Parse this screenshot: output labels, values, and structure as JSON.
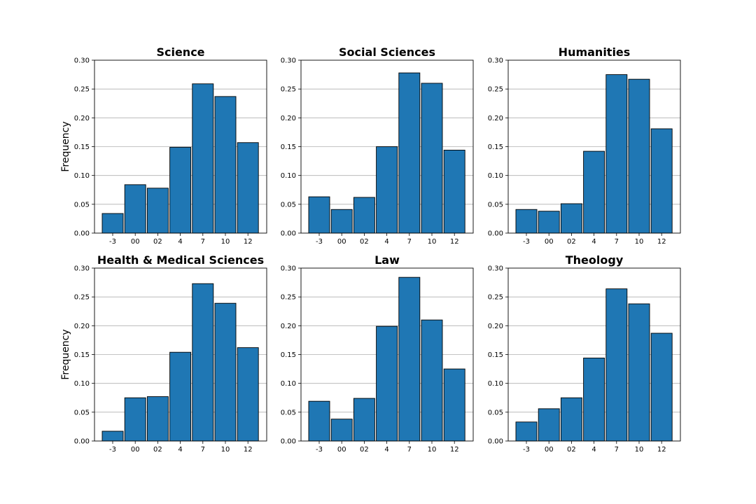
{
  "chart_data": [
    {
      "type": "bar",
      "title": "Science",
      "ylabel": "Frequency",
      "categories": [
        "-3",
        "00",
        "02",
        "4",
        "7",
        "10",
        "12"
      ],
      "values": [
        0.034,
        0.084,
        0.078,
        0.149,
        0.259,
        0.237,
        0.157
      ],
      "ylim": [
        0,
        0.3
      ],
      "yticks": [
        "0.00",
        "0.05",
        "0.10",
        "0.15",
        "0.20",
        "0.25",
        "0.30"
      ],
      "grid": "horizontal",
      "color": "#1f77b4"
    },
    {
      "type": "bar",
      "title": "Social Sciences",
      "ylabel": "",
      "categories": [
        "-3",
        "00",
        "02",
        "4",
        "7",
        "10",
        "12"
      ],
      "values": [
        0.063,
        0.041,
        0.062,
        0.15,
        0.278,
        0.26,
        0.144
      ],
      "ylim": [
        0,
        0.3
      ],
      "yticks": [
        "0.00",
        "0.05",
        "0.10",
        "0.15",
        "0.20",
        "0.25",
        "0.30"
      ],
      "grid": "horizontal",
      "color": "#1f77b4"
    },
    {
      "type": "bar",
      "title": "Humanities",
      "ylabel": "",
      "categories": [
        "-3",
        "00",
        "02",
        "4",
        "7",
        "10",
        "12"
      ],
      "values": [
        0.041,
        0.038,
        0.051,
        0.142,
        0.275,
        0.267,
        0.181
      ],
      "ylim": [
        0,
        0.3
      ],
      "yticks": [
        "0.00",
        "0.05",
        "0.10",
        "0.15",
        "0.20",
        "0.25",
        "0.30"
      ],
      "grid": "horizontal",
      "color": "#1f77b4"
    },
    {
      "type": "bar",
      "title": "Health & Medical Sciences",
      "ylabel": "Frequency",
      "categories": [
        "-3",
        "00",
        "02",
        "4",
        "7",
        "10",
        "12"
      ],
      "values": [
        0.017,
        0.075,
        0.077,
        0.154,
        0.273,
        0.239,
        0.162
      ],
      "ylim": [
        0,
        0.3
      ],
      "yticks": [
        "0.00",
        "0.05",
        "0.10",
        "0.15",
        "0.20",
        "0.25",
        "0.30"
      ],
      "grid": "horizontal",
      "color": "#1f77b4"
    },
    {
      "type": "bar",
      "title": "Law",
      "ylabel": "",
      "categories": [
        "-3",
        "00",
        "02",
        "4",
        "7",
        "10",
        "12"
      ],
      "values": [
        0.069,
        0.038,
        0.074,
        0.199,
        0.284,
        0.21,
        0.125
      ],
      "ylim": [
        0,
        0.3
      ],
      "yticks": [
        "0.00",
        "0.05",
        "0.10",
        "0.15",
        "0.20",
        "0.25",
        "0.30"
      ],
      "grid": "horizontal",
      "color": "#1f77b4"
    },
    {
      "type": "bar",
      "title": "Theology",
      "ylabel": "",
      "categories": [
        "-3",
        "00",
        "02",
        "4",
        "7",
        "10",
        "12"
      ],
      "values": [
        0.033,
        0.056,
        0.075,
        0.144,
        0.264,
        0.238,
        0.187
      ],
      "ylim": [
        0,
        0.3
      ],
      "yticks": [
        "0.00",
        "0.05",
        "0.10",
        "0.15",
        "0.20",
        "0.25",
        "0.30"
      ],
      "grid": "horizontal",
      "color": "#1f77b4"
    }
  ]
}
